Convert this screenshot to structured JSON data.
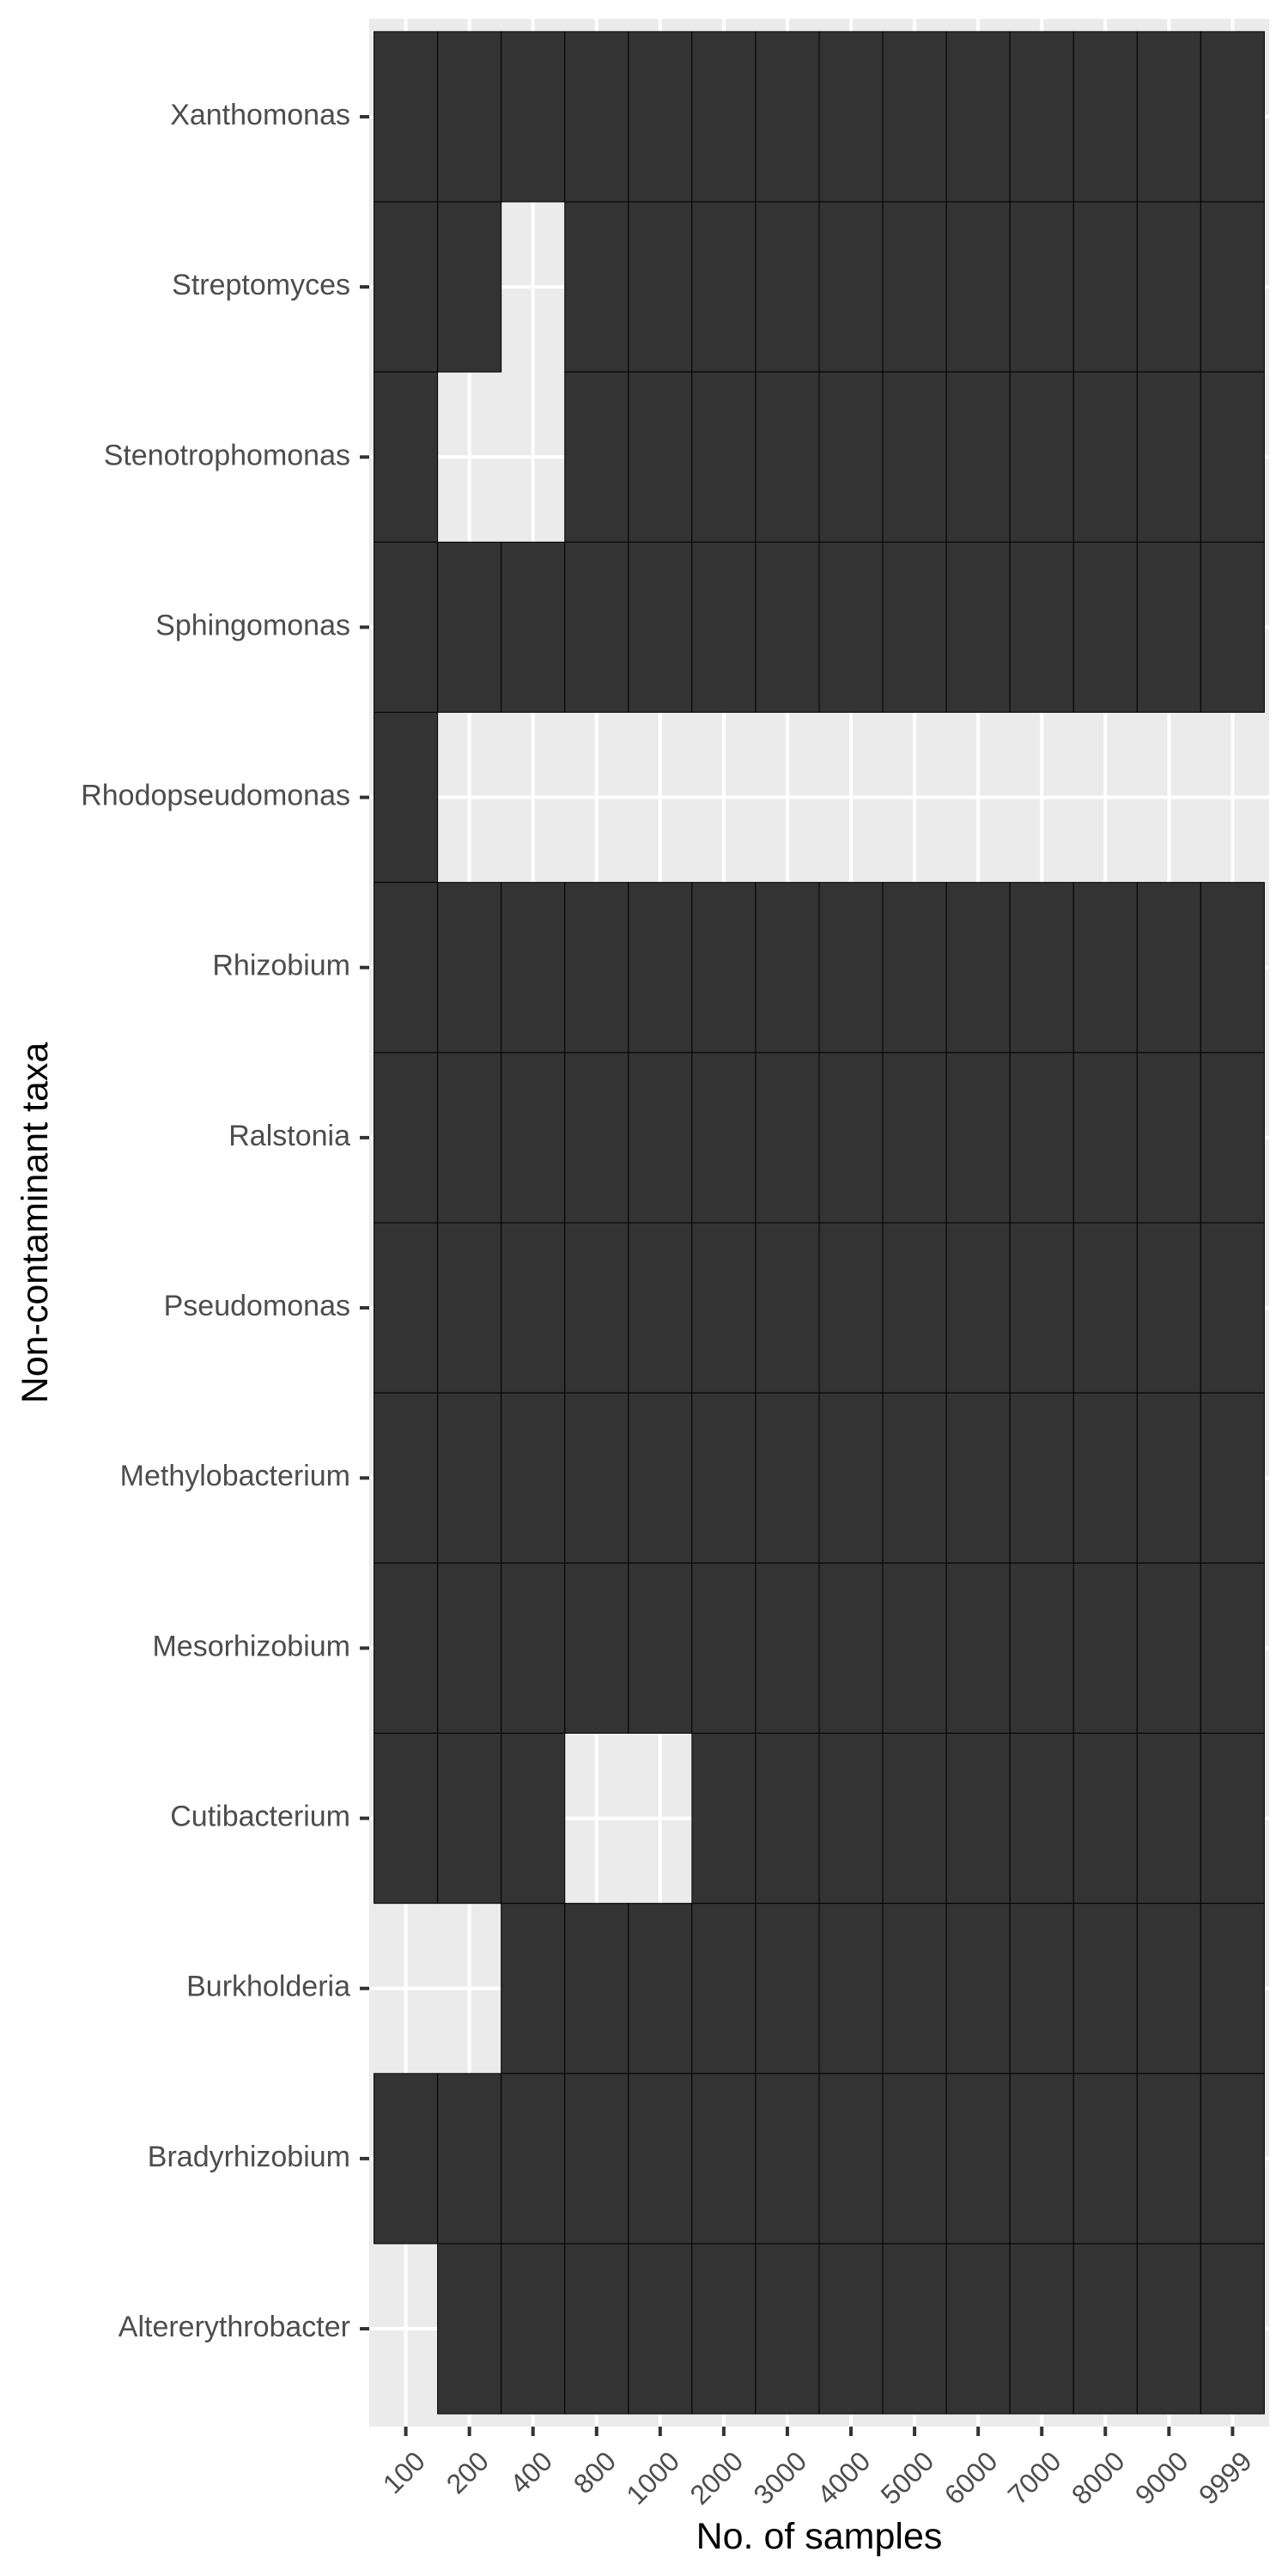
{
  "chart_data": {
    "type": "heatmap",
    "title": "",
    "xlabel": "No. of samples",
    "ylabel": "Non-contaminant taxa",
    "x_categories": [
      "100",
      "200",
      "400",
      "800",
      "1000",
      "2000",
      "3000",
      "4000",
      "5000",
      "6000",
      "7000",
      "8000",
      "9000",
      "9999"
    ],
    "y_categories": [
      "Xanthomonas",
      "Streptomyces",
      "Stenotrophomonas",
      "Sphingomonas",
      "Rhodopseudomonas",
      "Rhizobium",
      "Ralstonia",
      "Pseudomonas",
      "Methylobacterium",
      "Mesorhizobium",
      "Cutibacterium",
      "Burkholderia",
      "Bradyrhizobium",
      "Altererythrobacter"
    ],
    "presence": [
      [
        1,
        1,
        1,
        1,
        1,
        1,
        1,
        1,
        1,
        1,
        1,
        1,
        1,
        1
      ],
      [
        1,
        1,
        0,
        1,
        1,
        1,
        1,
        1,
        1,
        1,
        1,
        1,
        1,
        1
      ],
      [
        1,
        0,
        0,
        1,
        1,
        1,
        1,
        1,
        1,
        1,
        1,
        1,
        1,
        1
      ],
      [
        1,
        1,
        1,
        1,
        1,
        1,
        1,
        1,
        1,
        1,
        1,
        1,
        1,
        1
      ],
      [
        1,
        0,
        0,
        0,
        0,
        0,
        0,
        0,
        0,
        0,
        0,
        0,
        0,
        0
      ],
      [
        1,
        1,
        1,
        1,
        1,
        1,
        1,
        1,
        1,
        1,
        1,
        1,
        1,
        1
      ],
      [
        1,
        1,
        1,
        1,
        1,
        1,
        1,
        1,
        1,
        1,
        1,
        1,
        1,
        1
      ],
      [
        1,
        1,
        1,
        1,
        1,
        1,
        1,
        1,
        1,
        1,
        1,
        1,
        1,
        1
      ],
      [
        1,
        1,
        1,
        1,
        1,
        1,
        1,
        1,
        1,
        1,
        1,
        1,
        1,
        1
      ],
      [
        1,
        1,
        1,
        1,
        1,
        1,
        1,
        1,
        1,
        1,
        1,
        1,
        1,
        1
      ],
      [
        1,
        1,
        1,
        0,
        0,
        1,
        1,
        1,
        1,
        1,
        1,
        1,
        1,
        1
      ],
      [
        0,
        0,
        1,
        1,
        1,
        1,
        1,
        1,
        1,
        1,
        1,
        1,
        1,
        1
      ],
      [
        1,
        1,
        1,
        1,
        1,
        1,
        1,
        1,
        1,
        1,
        1,
        1,
        1,
        1
      ],
      [
        0,
        1,
        1,
        1,
        1,
        1,
        1,
        1,
        1,
        1,
        1,
        1,
        1,
        1
      ]
    ],
    "grid": true,
    "legend": "none",
    "colors": {
      "present": "#333333",
      "background": "#ebebeb",
      "gridline": "#ffffff",
      "tile_border": "#000000"
    }
  }
}
